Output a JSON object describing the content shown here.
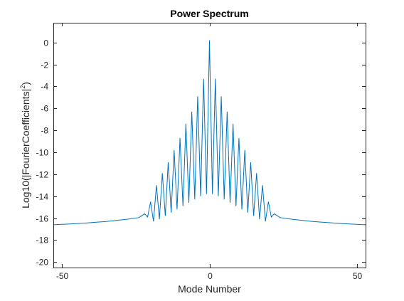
{
  "chart_data": {
    "type": "line",
    "title": "Power Spectrum",
    "xlabel": "Mode Number",
    "ylabel": "Log10(|FourierCoefficients|",
    "ylabel_sup": "2",
    "ylabel_tail": ")",
    "xlim": [
      -53,
      53
    ],
    "ylim": [
      -20.5,
      1.8
    ],
    "xticks": [
      -50,
      0,
      50
    ],
    "yticks": [
      0,
      -2,
      -4,
      -6,
      -8,
      -10,
      -12,
      -14,
      -16,
      -18,
      -20
    ],
    "grid": false,
    "box": true,
    "line_color": "#0072BD",
    "series": [
      {
        "x": [
          -53,
          -45,
          -35,
          -28,
          -24,
          -22,
          -21,
          -20,
          -19,
          -18,
          -17,
          -16,
          -15,
          -14,
          -13,
          -12,
          -11,
          -10,
          -9,
          -8,
          -7,
          -6,
          -5,
          -4,
          -3,
          -2,
          -1,
          0,
          1,
          2,
          3,
          4,
          5,
          6,
          7,
          8,
          9,
          10,
          11,
          12,
          13,
          14,
          15,
          16,
          17,
          18,
          19,
          20,
          21,
          22,
          24,
          28,
          35,
          45,
          53
        ],
        "y": [
          -16.6,
          -16.5,
          -16.3,
          -16.1,
          -15.95,
          -15.6,
          -15.9,
          -14.5,
          -16.3,
          -13.0,
          -16.1,
          -11.9,
          -15.8,
          -10.9,
          -15.5,
          -9.8,
          -15.2,
          -8.7,
          -14.9,
          -7.4,
          -14.6,
          -6.3,
          -14.3,
          -4.9,
          -14.0,
          -3.3,
          -13.8,
          0.2,
          -13.8,
          -3.3,
          -14.0,
          -4.9,
          -14.3,
          -6.3,
          -14.6,
          -7.4,
          -14.9,
          -8.7,
          -15.2,
          -9.8,
          -15.5,
          -10.9,
          -15.8,
          -11.9,
          -16.1,
          -13.0,
          -16.3,
          -14.5,
          -15.9,
          -15.6,
          -15.95,
          -16.1,
          -16.3,
          -16.5,
          -16.6
        ]
      }
    ]
  }
}
